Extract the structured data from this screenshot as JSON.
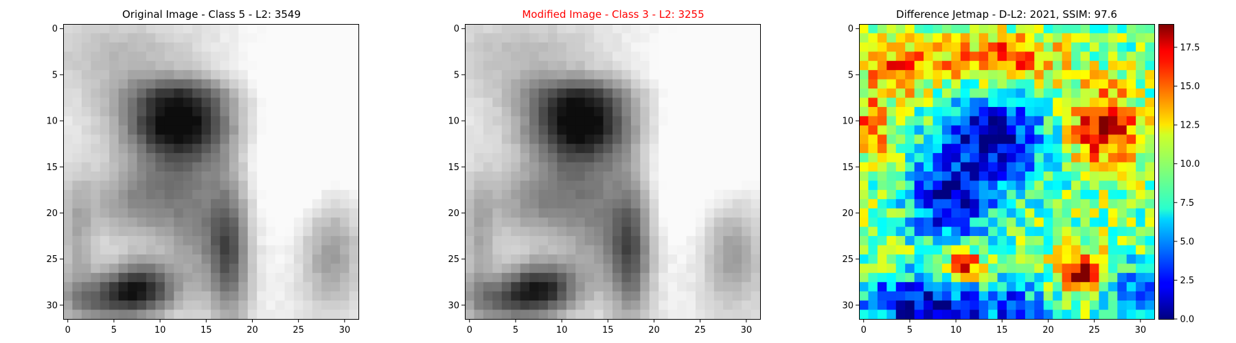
{
  "figure": {
    "panels": [
      {
        "id": "original",
        "title": "Original Image - Class 5 - L2: 3549",
        "title_color": "#000000"
      },
      {
        "id": "modified",
        "title": "Modified Image - Class 3 - L2: 3255",
        "title_color": "#ff0000"
      },
      {
        "id": "difference",
        "title": "Difference Jetmap - D-L2: 2021, SSIM: 97.6",
        "title_color": "#000000"
      }
    ]
  },
  "chart_data": [
    {
      "type": "heatmap",
      "title": "Original Image - Class 5 - L2: 3549",
      "colormap": "gray",
      "grid_size": [
        32,
        32
      ],
      "x_ticks": [
        0,
        5,
        10,
        15,
        20,
        25,
        30
      ],
      "y_ticks": [
        0,
        5,
        10,
        15,
        20,
        25,
        30
      ],
      "xlim": [
        -0.5,
        31.5
      ],
      "ylim": [
        31.5,
        -0.5
      ],
      "grid": false
    },
    {
      "type": "heatmap",
      "title": "Modified Image - Class 3 - L2: 3255",
      "colormap": "gray",
      "grid_size": [
        32,
        32
      ],
      "x_ticks": [
        0,
        5,
        10,
        15,
        20,
        25,
        30
      ],
      "y_ticks": [
        0,
        5,
        10,
        15,
        20,
        25,
        30
      ],
      "xlim": [
        -0.5,
        31.5
      ],
      "ylim": [
        31.5,
        -0.5
      ],
      "grid": false
    },
    {
      "type": "heatmap",
      "title": "Difference Jetmap - D-L2: 2021, SSIM: 97.6",
      "colormap": "jet",
      "grid_size": [
        32,
        32
      ],
      "x_ticks": [
        0,
        5,
        10,
        15,
        20,
        25,
        30
      ],
      "y_ticks": [
        0,
        5,
        10,
        15,
        20,
        25,
        30
      ],
      "xlim": [
        -0.5,
        31.5
      ],
      "ylim": [
        31.5,
        -0.5
      ],
      "grid": false,
      "colorbar": {
        "range": [
          0,
          19
        ],
        "ticks": [
          0.0,
          2.5,
          5.0,
          7.5,
          10.0,
          12.5,
          15.0,
          17.5
        ],
        "tick_labels": [
          "0.0",
          "2.5",
          "5.0",
          "7.5",
          "10.0",
          "12.5",
          "15.0",
          "17.5"
        ]
      }
    }
  ]
}
